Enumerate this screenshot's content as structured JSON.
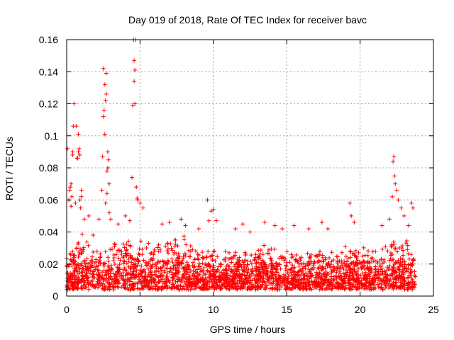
{
  "chart_data": {
    "type": "scatter",
    "title": "Day 019 of 2018, Rate Of TEC Index for receiver bavc",
    "xlabel": "GPS time / hours",
    "ylabel": "ROTI / TECUs",
    "xlim": [
      0,
      25
    ],
    "ylim": [
      0,
      0.16
    ],
    "grid": true,
    "marker": "+",
    "colors": {
      "series": "#ff0000",
      "grid": "#a0a0a0",
      "frame": "#000000"
    },
    "x_ticks": [
      0,
      5,
      10,
      15,
      20,
      25
    ],
    "x_tick_labels": [
      "0",
      "5",
      "10",
      "15",
      "20",
      "25"
    ],
    "y_ticks": [
      0,
      0.02,
      0.04,
      0.06,
      0.08,
      0.1,
      0.12,
      0.14,
      0.16
    ],
    "y_tick_labels": [
      "0",
      "0.02",
      "0.04",
      "0.06",
      "0.08",
      "0.1",
      "0.12",
      "0.14",
      "0.16"
    ],
    "data_range_hours": [
      0,
      23.8
    ],
    "background_envelope": [
      [
        0,
        0.028
      ],
      [
        0.5,
        0.032
      ],
      [
        1,
        0.04
      ],
      [
        1.5,
        0.035
      ],
      [
        2,
        0.03
      ],
      [
        3,
        0.034
      ],
      [
        4,
        0.038
      ],
      [
        5,
        0.036
      ],
      [
        6,
        0.034
      ],
      [
        7,
        0.036
      ],
      [
        8,
        0.038
      ],
      [
        9,
        0.034
      ],
      [
        10,
        0.032
      ],
      [
        11,
        0.03
      ],
      [
        12,
        0.03
      ],
      [
        13,
        0.032
      ],
      [
        14,
        0.034
      ],
      [
        15,
        0.03
      ],
      [
        16,
        0.028
      ],
      [
        17,
        0.03
      ],
      [
        18,
        0.03
      ],
      [
        19,
        0.034
      ],
      [
        20,
        0.03
      ],
      [
        21,
        0.032
      ],
      [
        22,
        0.036
      ],
      [
        23,
        0.038
      ],
      [
        23.8,
        0.034
      ]
    ],
    "series": [
      {
        "name": "ROTI",
        "points": [
          [
            0.05,
            0.092
          ],
          [
            0.15,
            0.06
          ],
          [
            0.2,
            0.066
          ],
          [
            0.25,
            0.068
          ],
          [
            0.3,
            0.07
          ],
          [
            0.3,
            0.056
          ],
          [
            0.35,
            0.062
          ],
          [
            0.4,
            0.09
          ],
          [
            0.4,
            0.088
          ],
          [
            0.45,
            0.106
          ],
          [
            0.5,
            0.12
          ],
          [
            0.6,
            0.058
          ],
          [
            0.65,
            0.106
          ],
          [
            0.7,
            0.086
          ],
          [
            0.75,
            0.086
          ],
          [
            0.8,
            0.101
          ],
          [
            0.8,
            0.09
          ],
          [
            0.85,
            0.092
          ],
          [
            0.9,
            0.088
          ],
          [
            0.9,
            0.06
          ],
          [
            0.95,
            0.055
          ],
          [
            1.0,
            0.066
          ],
          [
            1.0,
            0.062
          ],
          [
            1.2,
            0.048
          ],
          [
            1.5,
            0.05
          ],
          [
            1.8,
            0.038
          ],
          [
            2.2,
            0.048
          ],
          [
            2.4,
            0.066
          ],
          [
            2.45,
            0.087
          ],
          [
            2.5,
            0.112
          ],
          [
            2.5,
            0.142
          ],
          [
            2.55,
            0.116
          ],
          [
            2.6,
            0.132
          ],
          [
            2.6,
            0.101
          ],
          [
            2.65,
            0.122
          ],
          [
            2.65,
            0.058
          ],
          [
            2.7,
            0.139
          ],
          [
            2.7,
            0.126
          ],
          [
            2.75,
            0.078
          ],
          [
            2.75,
            0.064
          ],
          [
            2.8,
            0.09
          ],
          [
            2.8,
            0.08
          ],
          [
            2.85,
            0.085
          ],
          [
            2.9,
            0.07
          ],
          [
            2.9,
            0.052
          ],
          [
            3.0,
            0.048
          ],
          [
            3.5,
            0.045
          ],
          [
            4.0,
            0.05
          ],
          [
            4.3,
            0.047
          ],
          [
            4.45,
            0.074
          ],
          [
            4.5,
            0.119
          ],
          [
            4.55,
            0.16
          ],
          [
            4.6,
            0.147
          ],
          [
            4.6,
            0.134
          ],
          [
            4.65,
            0.141
          ],
          [
            4.65,
            0.12
          ],
          [
            4.7,
            0.16
          ],
          [
            4.75,
            0.068
          ],
          [
            4.8,
            0.061
          ],
          [
            4.85,
            0.06
          ],
          [
            5.0,
            0.058
          ],
          [
            5.2,
            0.055
          ],
          [
            6.5,
            0.045
          ],
          [
            7.0,
            0.046
          ],
          [
            7.8,
            0.048
          ],
          [
            8.1,
            0.044
          ],
          [
            9.0,
            0.042
          ],
          [
            9.6,
            0.06
          ],
          [
            9.7,
            0.047
          ],
          [
            9.85,
            0.053
          ],
          [
            10.0,
            0.054
          ],
          [
            10.2,
            0.047
          ],
          [
            11.5,
            0.042
          ],
          [
            12.0,
            0.045
          ],
          [
            12.5,
            0.04
          ],
          [
            13.5,
            0.046
          ],
          [
            14.2,
            0.044
          ],
          [
            14.7,
            0.042
          ],
          [
            15.5,
            0.044
          ],
          [
            16.5,
            0.042
          ],
          [
            17.4,
            0.046
          ],
          [
            17.8,
            0.042
          ],
          [
            19.3,
            0.058
          ],
          [
            19.4,
            0.05
          ],
          [
            19.6,
            0.046
          ],
          [
            21.5,
            0.044
          ],
          [
            22.0,
            0.048
          ],
          [
            22.2,
            0.062
          ],
          [
            22.25,
            0.084
          ],
          [
            22.3,
            0.087
          ],
          [
            22.35,
            0.075
          ],
          [
            22.4,
            0.07
          ],
          [
            22.5,
            0.066
          ],
          [
            22.6,
            0.06
          ],
          [
            22.8,
            0.055
          ],
          [
            23.0,
            0.05
          ],
          [
            23.3,
            0.044
          ],
          [
            23.5,
            0.058
          ],
          [
            23.6,
            0.055
          ]
        ]
      }
    ]
  }
}
